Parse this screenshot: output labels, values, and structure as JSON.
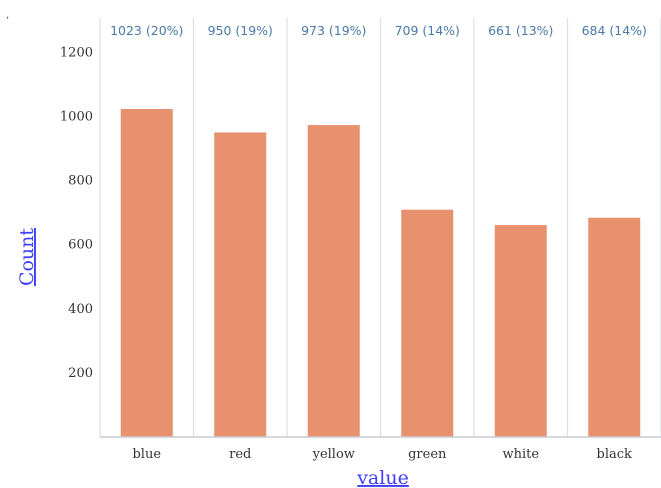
{
  "chart_data": {
    "type": "bar",
    "categories": [
      "blue",
      "red",
      "yellow",
      "green",
      "white",
      "black"
    ],
    "values": [
      1023,
      950,
      973,
      709,
      661,
      684
    ],
    "data_labels": [
      "1023 (20%)",
      "950 (19%)",
      "973 (19%)",
      "709 (14%)",
      "661 (13%)",
      "684 (14%)"
    ],
    "xlabel": "value",
    "ylabel": "Count",
    "ylim": [
      0,
      1300
    ],
    "yticks": [
      200,
      400,
      600,
      800,
      1000,
      1200
    ],
    "grid": "vertical separators",
    "colors": {
      "bar": "#e8916f",
      "separator": "#dcdfe6",
      "axis": "#c8ccd4",
      "data_label": "#4a7aa8",
      "axis_title": "#3d3dff"
    }
  }
}
